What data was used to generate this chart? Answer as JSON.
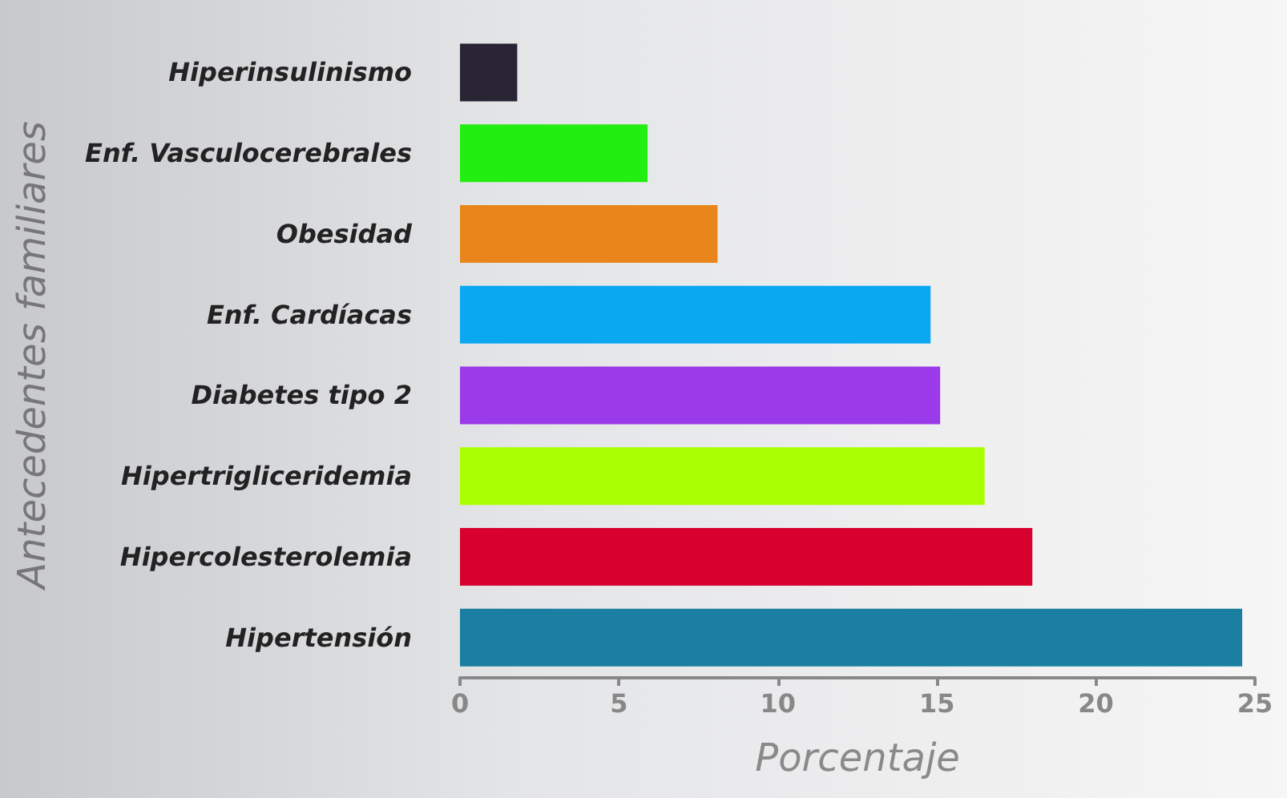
{
  "chart_data": {
    "type": "bar",
    "orientation": "horizontal",
    "xlabel": "Porcentaje",
    "ylabel": "Antecedentes familiares",
    "categories": [
      "Hiperinsulinismo",
      "Enf. Vasculocerebrales",
      "Obesidad",
      "Enf. Cardíacas",
      "Diabetes tipo 2",
      "Hipertrigliceridemia",
      "Hipercolesterolemia",
      "Hipertensión"
    ],
    "values": [
      1.8,
      5.9,
      8.1,
      14.8,
      15.1,
      16.5,
      18.0,
      24.6
    ],
    "colors": [
      "#2a2535",
      "#22ee11",
      "#e8861c",
      "#0aa8f0",
      "#9a3ae8",
      "#aaff00",
      "#d8002e",
      "#1a7fa0"
    ],
    "xlim": [
      0,
      25
    ],
    "xticks": [
      0,
      5,
      10,
      15,
      20,
      25
    ],
    "grid": false
  }
}
